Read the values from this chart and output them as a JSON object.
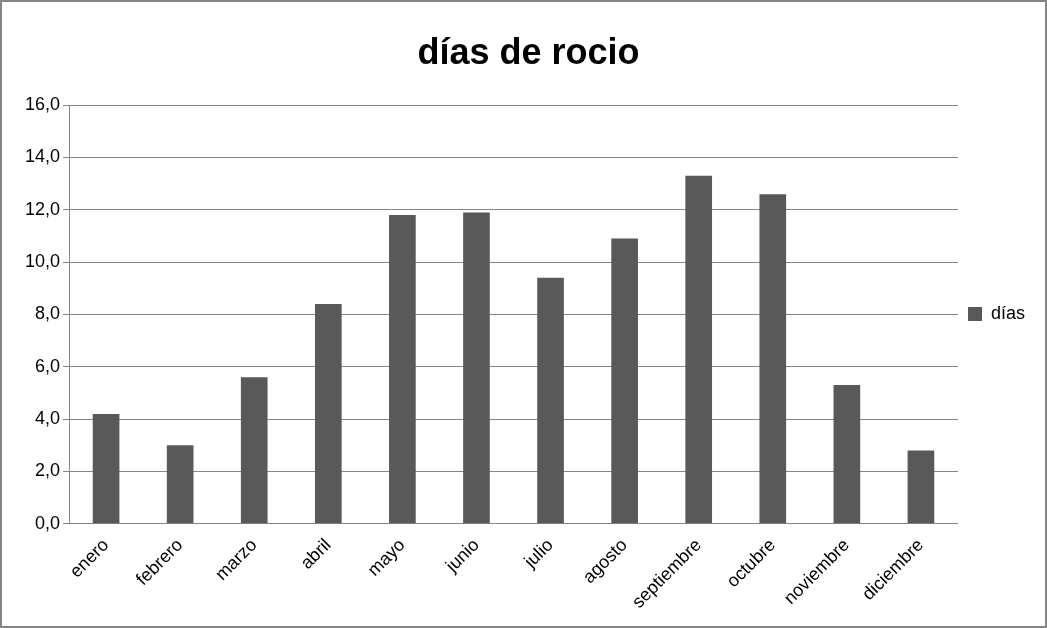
{
  "chart_data": {
    "type": "bar",
    "title": "días de rocio",
    "categories": [
      "enero",
      "febrero",
      "marzo",
      "abril",
      "mayo",
      "junio",
      "julio",
      "agosto",
      "septiembre",
      "octubre",
      "noviembre",
      "diciembre"
    ],
    "series": [
      {
        "name": "días",
        "color": "#595959",
        "values": [
          4.2,
          3.0,
          5.6,
          8.4,
          11.8,
          11.9,
          9.4,
          10.9,
          13.3,
          12.6,
          5.3,
          2.8
        ]
      }
    ],
    "ylim": [
      0,
      16
    ],
    "yticks": [
      {
        "value": 0,
        "label": "0,0"
      },
      {
        "value": 2,
        "label": "2,0"
      },
      {
        "value": 4,
        "label": "4,0"
      },
      {
        "value": 6,
        "label": "6,0"
      },
      {
        "value": 8,
        "label": "8,0"
      },
      {
        "value": 10,
        "label": "10,0"
      },
      {
        "value": 12,
        "label": "12,0"
      },
      {
        "value": 14,
        "label": "14,0"
      },
      {
        "value": 16,
        "label": "16,0"
      }
    ],
    "grid": "y",
    "legend": "right"
  }
}
